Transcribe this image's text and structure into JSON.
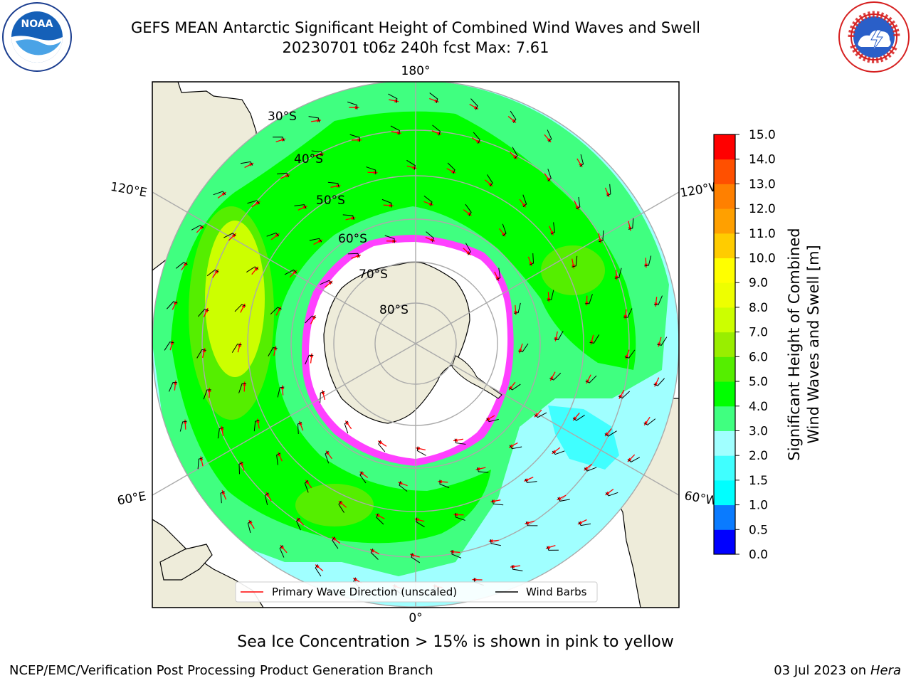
{
  "header": {
    "title_line1": "GEFS MEAN Antarctic Significant Height of Combined Wind Waves and Swell",
    "title_line2": "20230701 t06z 240h fcst   Max: 7.61"
  },
  "logos": {
    "left": "noaa-logo",
    "right": "nws-logo"
  },
  "map": {
    "projection": "south-polar-stereographic",
    "longitude_labels": [
      "180°",
      "120°E",
      "120°W",
      "60°E",
      "60°W",
      "0°"
    ],
    "latitude_labels": [
      "30°S",
      "40°S",
      "50°S",
      "60°S",
      "70°S",
      "80°S"
    ],
    "legend": {
      "wave_direction_label": "Primary Wave Direction (unscaled)",
      "wind_barbs_label": "Wind Barbs",
      "wave_direction_color": "#ff0000",
      "wind_barbs_color": "#000000"
    },
    "land_color": "#eeecda",
    "ocean_background_color": "#ffffff",
    "sea_ice_colors": [
      "#ff40ff",
      "#ffa0ff",
      "#ffcc00"
    ]
  },
  "colorbar": {
    "label_line1": "Significant Height of Combined",
    "label_line2": "Wind Waves and Swell [m]",
    "ticks": [
      "0.0",
      "0.5",
      "1.0",
      "1.5",
      "2.0",
      "3.0",
      "4.0",
      "5.0",
      "6.0",
      "7.0",
      "8.0",
      "9.0",
      "10.0",
      "11.0",
      "12.0",
      "13.0",
      "14.0",
      "15.0"
    ],
    "colors": [
      "#0000ff",
      "#0a7bff",
      "#00ffff",
      "#40ffff",
      "#a0ffff",
      "#40ff80",
      "#00ff00",
      "#55ee00",
      "#99ee00",
      "#ccff00",
      "#eeff00",
      "#ffff00",
      "#ffcc00",
      "#ffa000",
      "#ff8000",
      "#ff5000",
      "#ff0000"
    ]
  },
  "footer": {
    "sea_ice_note": "Sea Ice Concentration > 15% is shown in pink to yellow",
    "credit": "NCEP/EMC/Verification Post Processing Product Generation Branch",
    "date_prefix": "03 Jul 2023 on",
    "host": "Hera"
  }
}
